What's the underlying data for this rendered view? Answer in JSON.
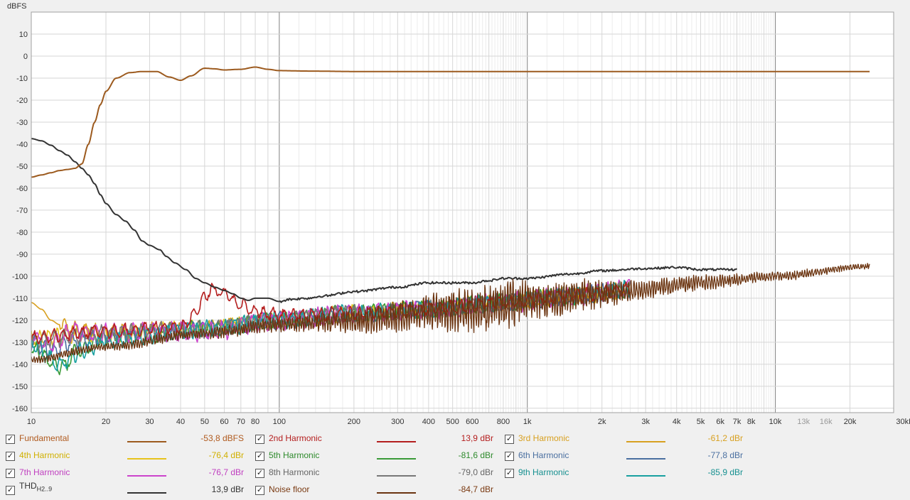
{
  "chart_data": {
    "type": "line",
    "y_axis_label": "dBFS",
    "x_axis": {
      "scale": "log",
      "range": [
        10,
        30000
      ],
      "unit": "Hz",
      "tick_labels": [
        {
          "f": 10,
          "t": "10"
        },
        {
          "f": 20,
          "t": "20"
        },
        {
          "f": 30,
          "t": "30"
        },
        {
          "f": 40,
          "t": "40"
        },
        {
          "f": 50,
          "t": "50"
        },
        {
          "f": 60,
          "t": "60"
        },
        {
          "f": 70,
          "t": "70"
        },
        {
          "f": 80,
          "t": "80"
        },
        {
          "f": 100,
          "t": "100"
        },
        {
          "f": 200,
          "t": "200"
        },
        {
          "f": 300,
          "t": "300"
        },
        {
          "f": 400,
          "t": "400"
        },
        {
          "f": 500,
          "t": "500"
        },
        {
          "f": 600,
          "t": "600"
        },
        {
          "f": 800,
          "t": "800"
        },
        {
          "f": 1000,
          "t": "1k"
        },
        {
          "f": 2000,
          "t": "2k"
        },
        {
          "f": 3000,
          "t": "3k"
        },
        {
          "f": 4000,
          "t": "4k"
        },
        {
          "f": 5000,
          "t": "5k"
        },
        {
          "f": 6000,
          "t": "6k"
        },
        {
          "f": 7000,
          "t": "7k"
        },
        {
          "f": 8000,
          "t": "8k"
        },
        {
          "f": 10000,
          "t": "10k"
        },
        {
          "f": 13000,
          "t": "13k",
          "muted": true
        },
        {
          "f": 16000,
          "t": "16k",
          "muted": true
        },
        {
          "f": 20000,
          "t": "20k"
        },
        {
          "f": 30000,
          "t": "30kHz"
        }
      ]
    },
    "y_axis": {
      "range": [
        -162,
        20
      ],
      "ticks": [
        10,
        0,
        -10,
        -20,
        -30,
        -40,
        -50,
        -60,
        -70,
        -80,
        -90,
        -100,
        -110,
        -120,
        -130,
        -140,
        -150,
        -160
      ]
    },
    "grid": true,
    "series": [
      {
        "id": "fundamental",
        "name": "Fundamental",
        "color": "#9c5a1e",
        "kind": "smooth",
        "points": [
          [
            10,
            -55
          ],
          [
            11,
            -54
          ],
          [
            12,
            -53
          ],
          [
            13,
            -52
          ],
          [
            14,
            -51.5
          ],
          [
            15,
            -51
          ],
          [
            16,
            -49
          ],
          [
            17,
            -40
          ],
          [
            18,
            -30
          ],
          [
            19,
            -22
          ],
          [
            20,
            -16
          ],
          [
            22,
            -10
          ],
          [
            25,
            -7.5
          ],
          [
            28,
            -7
          ],
          [
            32,
            -7
          ],
          [
            36,
            -9.5
          ],
          [
            40,
            -11
          ],
          [
            44,
            -9
          ],
          [
            50,
            -5.5
          ],
          [
            55,
            -5.8
          ],
          [
            60,
            -6.3
          ],
          [
            70,
            -6
          ],
          [
            80,
            -5
          ],
          [
            90,
            -6
          ],
          [
            100,
            -6.6
          ],
          [
            130,
            -6.8
          ],
          [
            200,
            -7
          ],
          [
            24000,
            -7
          ]
        ]
      },
      {
        "id": "thd",
        "name": "THD",
        "color": "#333333",
        "kind": "smooth",
        "points": [
          [
            10,
            -37.5
          ],
          [
            11,
            -38.5
          ],
          [
            12,
            -40.5
          ],
          [
            13,
            -43
          ],
          [
            14,
            -45
          ],
          [
            15,
            -48
          ],
          [
            16,
            -51
          ],
          [
            17,
            -54
          ],
          [
            18,
            -58
          ],
          [
            19,
            -63
          ],
          [
            20,
            -67
          ],
          [
            22,
            -72
          ],
          [
            24,
            -75
          ],
          [
            26,
            -79
          ],
          [
            28,
            -84
          ],
          [
            30,
            -86
          ],
          [
            33,
            -88
          ],
          [
            35,
            -91
          ],
          [
            38,
            -94
          ],
          [
            42,
            -97
          ],
          [
            46,
            -101
          ],
          [
            50,
            -103
          ],
          [
            55,
            -105
          ],
          [
            60,
            -106.5
          ],
          [
            65,
            -108
          ],
          [
            70,
            -110
          ],
          [
            75,
            -111
          ],
          [
            80,
            -110
          ],
          [
            90,
            -110
          ],
          [
            100,
            -111.5
          ],
          [
            110,
            -110.5
          ],
          [
            130,
            -110
          ],
          [
            150,
            -109
          ],
          [
            200,
            -107
          ],
          [
            300,
            -105
          ],
          [
            400,
            -103
          ],
          [
            500,
            -103
          ],
          [
            600,
            -103
          ],
          [
            700,
            -102
          ],
          [
            800,
            -101
          ],
          [
            1000,
            -101
          ],
          [
            1500,
            -99
          ],
          [
            2000,
            -97.5
          ],
          [
            3000,
            -96.5
          ],
          [
            4000,
            -96
          ],
          [
            5000,
            -97
          ],
          [
            7000,
            -97
          ]
        ],
        "noise": 1.0,
        "noise_from": 100
      },
      {
        "id": "noise",
        "name": "Noise floor",
        "color": "#6b3410",
        "kind": "noise",
        "points": [
          [
            10,
            -138
          ],
          [
            20,
            -132
          ],
          [
            50,
            -126
          ],
          [
            100,
            -122
          ],
          [
            200,
            -120
          ],
          [
            500,
            -116
          ],
          [
            1000,
            -112
          ],
          [
            2000,
            -108
          ],
          [
            5000,
            -103
          ],
          [
            10000,
            -100
          ],
          [
            24000,
            -95.5
          ]
        ],
        "amp": [
          [
            10,
            1.5
          ],
          [
            40,
            2
          ],
          [
            100,
            3
          ],
          [
            300,
            6
          ],
          [
            700,
            10
          ],
          [
            1500,
            7
          ],
          [
            3000,
            4
          ],
          [
            10000,
            2
          ],
          [
            24000,
            1.2
          ]
        ]
      },
      {
        "id": "h2",
        "name": "2nd Harmonic",
        "color": "#b41e1e",
        "kind": "noisy",
        "points": [
          [
            10,
            -128
          ],
          [
            20,
            -125
          ],
          [
            40,
            -123
          ],
          [
            55,
            -106
          ],
          [
            60,
            -108
          ],
          [
            70,
            -113
          ],
          [
            80,
            -116
          ],
          [
            90,
            -117
          ],
          [
            100,
            -118
          ],
          [
            200,
            -117
          ],
          [
            400,
            -115
          ],
          [
            800,
            -112
          ],
          [
            1500,
            -109
          ],
          [
            2600,
            -106
          ]
        ],
        "amp": 2.5
      },
      {
        "id": "h3",
        "name": "3rd Harmonic",
        "color": "#d8a020",
        "kind": "noisy",
        "points": [
          [
            10,
            -112
          ],
          [
            11,
            -115
          ],
          [
            12,
            -120
          ],
          [
            13,
            -122
          ],
          [
            15,
            -124
          ],
          [
            20,
            -125
          ],
          [
            40,
            -124
          ],
          [
            100,
            -120
          ],
          [
            200,
            -117
          ],
          [
            400,
            -115
          ],
          [
            800,
            -112
          ],
          [
            1500,
            -109
          ],
          [
            2600,
            -106
          ]
        ],
        "amp": 2.5,
        "noise_from": 13
      },
      {
        "id": "h4",
        "name": "4th Harmonic",
        "color": "#e6c21a",
        "kind": "noisy",
        "points": [
          [
            10,
            -128
          ],
          [
            20,
            -126
          ],
          [
            50,
            -124
          ],
          [
            100,
            -120
          ],
          [
            200,
            -117
          ],
          [
            400,
            -115
          ],
          [
            800,
            -112
          ],
          [
            1500,
            -109
          ],
          [
            2600,
            -106
          ]
        ],
        "amp": 3
      },
      {
        "id": "h5",
        "name": "5th Harmonic",
        "color": "#3a9a38",
        "kind": "noisy",
        "points": [
          [
            10,
            -133
          ],
          [
            13,
            -141
          ],
          [
            16,
            -133
          ],
          [
            20,
            -128
          ],
          [
            50,
            -124
          ],
          [
            100,
            -120
          ],
          [
            200,
            -117
          ],
          [
            400,
            -115
          ],
          [
            800,
            -112
          ],
          [
            1500,
            -109
          ],
          [
            2600,
            -106
          ]
        ],
        "amp": 3
      },
      {
        "id": "h6",
        "name": "6th Harmonic",
        "color": "#4a6fa0",
        "kind": "noisy",
        "points": [
          [
            10,
            -130
          ],
          [
            12,
            -134
          ],
          [
            14,
            -130
          ],
          [
            20,
            -127
          ],
          [
            50,
            -124
          ],
          [
            100,
            -120
          ],
          [
            200,
            -117
          ],
          [
            400,
            -115
          ],
          [
            800,
            -112
          ],
          [
            1500,
            -109
          ],
          [
            2600,
            -106
          ]
        ],
        "amp": 3
      },
      {
        "id": "h7",
        "name": "7th Harmonic",
        "color": "#cc44cc",
        "kind": "noisy",
        "points": [
          [
            10,
            -127
          ],
          [
            12,
            -131
          ],
          [
            15,
            -125
          ],
          [
            20,
            -126
          ],
          [
            50,
            -125
          ],
          [
            100,
            -120
          ],
          [
            200,
            -117
          ],
          [
            400,
            -115
          ],
          [
            800,
            -112
          ],
          [
            1500,
            -109
          ],
          [
            2600,
            -106
          ]
        ],
        "amp": 3.5
      },
      {
        "id": "h8",
        "name": "8th Harmonic",
        "color": "#777777",
        "kind": "noisy",
        "points": [
          [
            10,
            -129
          ],
          [
            20,
            -126
          ],
          [
            50,
            -124
          ],
          [
            100,
            -120
          ],
          [
            200,
            -117
          ],
          [
            400,
            -115
          ],
          [
            800,
            -112
          ],
          [
            1500,
            -109
          ],
          [
            2600,
            -106
          ]
        ],
        "amp": 3
      },
      {
        "id": "h9",
        "name": "9th Harmonic",
        "color": "#18a0a0",
        "kind": "noisy",
        "points": [
          [
            10,
            -131
          ],
          [
            13,
            -140
          ],
          [
            16,
            -134
          ],
          [
            20,
            -129
          ],
          [
            50,
            -124
          ],
          [
            100,
            -120
          ],
          [
            200,
            -117
          ],
          [
            400,
            -115
          ],
          [
            800,
            -112
          ],
          [
            1500,
            -109
          ],
          [
            2600,
            -106
          ]
        ],
        "amp": 3
      }
    ]
  },
  "legend": [
    {
      "id": "fundamental",
      "name": "Fundamental",
      "value": "-53,8 dBFS",
      "name_color": "#b05a1e",
      "value_color": "#b05a1e",
      "line_color": "#9c5a1e"
    },
    {
      "id": "h2",
      "name": "2nd Harmonic",
      "value": "13,9 dBr",
      "name_color": "#b41e1e",
      "value_color": "#b41e1e",
      "line_color": "#b41e1e"
    },
    {
      "id": "h3",
      "name": "3rd Harmonic",
      "value": "-61,2 dBr",
      "name_color": "#d8a020",
      "value_color": "#d8a020",
      "line_color": "#d8a020"
    },
    {
      "id": "h4",
      "name": "4th Harmonic",
      "value": "-76,4 dBr",
      "name_color": "#d0b000",
      "value_color": "#d0b000",
      "line_color": "#e6c21a"
    },
    {
      "id": "h5",
      "name": "5th Harmonic",
      "value": "-81,6 dBr",
      "name_color": "#2e8a2c",
      "value_color": "#2e8a2c",
      "line_color": "#3a9a38"
    },
    {
      "id": "h6",
      "name": "6th Harmonic",
      "value": "-77,8 dBr",
      "name_color": "#4a6fa0",
      "value_color": "#4a6fa0",
      "line_color": "#4a6fa0"
    },
    {
      "id": "h7",
      "name": "7th Harmonic",
      "value": "-76,7 dBr",
      "name_color": "#c040c0",
      "value_color": "#c040c0",
      "line_color": "#cc44cc"
    },
    {
      "id": "h8",
      "name": "8th Harmonic",
      "value": "-79,0 dBr",
      "name_color": "#666666",
      "value_color": "#666666",
      "line_color": "#777777"
    },
    {
      "id": "h9",
      "name": "9th Harmonic",
      "value": "-85,9 dBr",
      "name_color": "#169090",
      "value_color": "#169090",
      "line_color": "#18a0a0"
    },
    {
      "id": "thd",
      "name": "THD",
      "sub": "H2..9",
      "value": "13,9 dBr",
      "name_color": "#333333",
      "value_color": "#333333",
      "line_color": "#333333"
    },
    {
      "id": "noise",
      "name": "Noise floor",
      "value": "-84,7 dBr",
      "name_color": "#7a3a12",
      "value_color": "#7a3a12",
      "line_color": "#6b3410"
    }
  ],
  "checkbox_glyph": "✓"
}
